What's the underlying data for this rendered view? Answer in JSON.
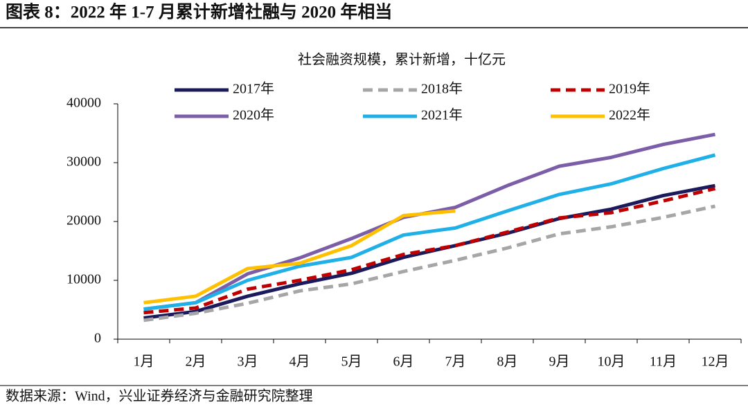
{
  "title": "图表 8：2022 年 1-7 月累计新增社融与 2020 年相当",
  "source": "数据来源：Wind，兴业证券经济与金融研究院整理",
  "chart_data": {
    "type": "line",
    "title": "社会融资规模，累计新增，十亿元",
    "categories": [
      "1月",
      "2月",
      "3月",
      "4月",
      "5月",
      "6月",
      "7月",
      "8月",
      "9月",
      "10月",
      "11月",
      "12月"
    ],
    "ylim": [
      0,
      40000
    ],
    "yticks": [
      0,
      10000,
      20000,
      30000,
      40000
    ],
    "series": [
      {
        "name": "2017年",
        "color": "#1b1a5c",
        "dash": false,
        "values": [
          3600,
          4700,
          7300,
          9400,
          11200,
          13900,
          15900,
          18000,
          20500,
          22100,
          24400,
          26100
        ]
      },
      {
        "name": "2018年",
        "color": "#a6a6a6",
        "dash": true,
        "values": [
          3200,
          4400,
          6100,
          8200,
          9400,
          11500,
          13400,
          15500,
          17900,
          19100,
          20700,
          22600
        ]
      },
      {
        "name": "2019年",
        "color": "#c00000",
        "dash": true,
        "values": [
          4500,
          5300,
          8500,
          10000,
          11800,
          14400,
          15900,
          18200,
          20600,
          21500,
          23500,
          25600
        ]
      },
      {
        "name": "2020年",
        "color": "#7b5ea7",
        "dash": false,
        "values": [
          5100,
          6200,
          11100,
          13800,
          17100,
          20700,
          22400,
          26100,
          29400,
          30900,
          33100,
          34800
        ]
      },
      {
        "name": "2021年",
        "color": "#1fb0e8",
        "dash": false,
        "values": [
          5100,
          6200,
          10000,
          12400,
          13900,
          17700,
          18900,
          21800,
          24600,
          26400,
          29000,
          31300
        ]
      },
      {
        "name": "2022年",
        "color": "#ffc000",
        "dash": false,
        "values": [
          6200,
          7300,
          12000,
          12900,
          15900,
          21000,
          21800,
          null,
          null,
          null,
          null,
          null
        ]
      }
    ]
  }
}
